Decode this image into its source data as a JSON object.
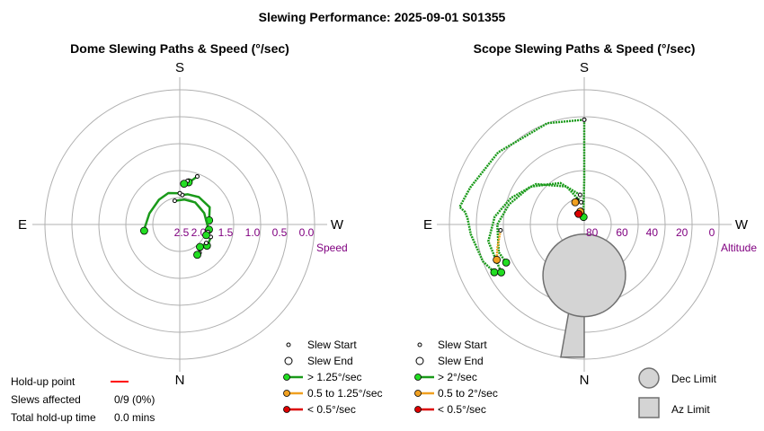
{
  "title": "Slewing Performance: 2025-09-01 S01355",
  "colors": {
    "fast": "#1a9a1a",
    "fast_marker": "#22dd22",
    "medium": "#f0a020",
    "slow": "#dd0000",
    "grid": "#b0b0b0",
    "tick": "#800080",
    "limit_fill": "#d4d4d4",
    "limit_stroke": "#707070",
    "holdup": "#ff0000"
  },
  "chart_data": [
    {
      "type": "polar-path",
      "title": "Dome Slewing Paths & Speed (°/sec)",
      "cardinals": {
        "top": "S",
        "bottom": "N",
        "left": "E",
        "right": "W"
      },
      "radial_label": "Speed",
      "radial_ticks": [
        "2.5",
        "2.0",
        "1.5",
        "1.0",
        "0.5",
        "0.0"
      ],
      "radial_range": [
        0.0,
        2.5
      ],
      "legend": {
        "start": "Slew Start",
        "end": "Slew End",
        "fast": "> 1.25°/sec",
        "medium": "0.5 to 1.25°/sec",
        "slow": "< 0.5°/sec"
      },
      "slews": [
        {
          "az": [
            200,
            197,
            192
          ],
          "speed": [
            1.55,
            1.62,
            1.7
          ],
          "class": "fast"
        },
        {
          "az": [
            190,
            186
          ],
          "speed": [
            1.68,
            1.74
          ],
          "class": "fast"
        },
        {
          "az": [
            185,
            195,
            215,
            240,
            262
          ],
          "speed": [
            1.95,
            1.92,
            1.88,
            1.86,
            1.95
          ],
          "class": "fast"
        },
        {
          "az": [
            168,
            190,
            215,
            245,
            270,
            280
          ],
          "speed": [
            2.05,
            2.03,
            2.0,
            2.0,
            1.99,
            1.95
          ],
          "class": "fast"
        },
        {
          "az": [
            180,
            160,
            140,
            110,
            85,
            80
          ],
          "speed": [
            1.92,
            1.88,
            1.9,
            1.9,
            1.85,
            1.83
          ],
          "class": "fast"
        },
        {
          "az": [
            292,
            300,
            308
          ],
          "speed": [
            1.88,
            1.87,
            1.86
          ],
          "class": "fast"
        },
        {
          "az": [
            305,
            312,
            318
          ],
          "speed": [
            1.9,
            1.92,
            1.94
          ],
          "class": "fast"
        },
        {
          "az": [
            285,
            292
          ],
          "speed": [
            1.96,
            1.97
          ],
          "class": "fast"
        },
        {
          "az": [
            325,
            330
          ],
          "speed": [
            1.86,
            1.85
          ],
          "class": "fast"
        }
      ]
    },
    {
      "type": "polar-path",
      "title": "Scope Slewing Paths & Speed (°/sec)",
      "cardinals": {
        "top": "S",
        "bottom": "N",
        "left": "E",
        "right": "W"
      },
      "radial_label": "Altitude",
      "radial_ticks": [
        "80",
        "60",
        "40",
        "20",
        "0"
      ],
      "radial_range": [
        90,
        0
      ],
      "legend": {
        "start": "Slew Start",
        "end": "Slew End",
        "fast": "> 2°/sec",
        "medium": "0.5 to 2°/sec",
        "slow": "< 0.5°/sec",
        "dec_limit": "Dec Limit",
        "az_limit": "Az Limit"
      },
      "slews": [
        {
          "az": [
            180,
            180,
            180,
            178,
            175
          ],
          "alt": [
            20,
            40,
            60,
            78,
            85
          ],
          "class": "fast"
        },
        {
          "az": [
            180,
            160,
            130,
            108,
            98,
            96,
            93,
            85,
            70,
            62
          ],
          "alt": [
            20,
            18,
            15,
            10,
            6,
            10,
            12,
            14,
            18,
            22
          ],
          "class": "fast"
        },
        {
          "az": [
            172,
            155,
            130,
            110,
            95,
            80,
            60
          ],
          "alt": [
            75,
            62,
            48,
            38,
            30,
            25,
            26
          ],
          "class": "fast"
        },
        {
          "az": [
            172,
            150,
            125,
            105,
            90,
            72,
            64
          ],
          "alt": [
            70,
            58,
            46,
            38,
            32,
            30,
            32
          ],
          "class": "fast"
        },
        {
          "az": [
            163,
            158
          ],
          "alt": [
            73,
            74
          ],
          "class": "medium"
        },
        {
          "az": [
            86,
            75,
            68
          ],
          "alt": [
            34,
            30,
            27
          ],
          "class": "medium"
        },
        {
          "az": [
            168,
            163
          ],
          "alt": [
            80,
            81
          ],
          "class": "medium"
        },
        {
          "az": [
            145,
            152
          ],
          "alt": [
            81,
            82
          ],
          "class": "slow"
        }
      ],
      "dec_limit": {
        "az": 0,
        "alt": 56,
        "radius_deg": 19
      },
      "az_limit": {
        "az_range": [
          -10,
          10
        ],
        "alt_range": [
          45,
          0
        ]
      }
    }
  ],
  "holdup": {
    "point_label": "Hold-up point",
    "slews_label": "Slews affected",
    "slews_value": "0/9 (0%)",
    "time_label": "Total hold-up time",
    "time_value": "0.0 mins"
  }
}
